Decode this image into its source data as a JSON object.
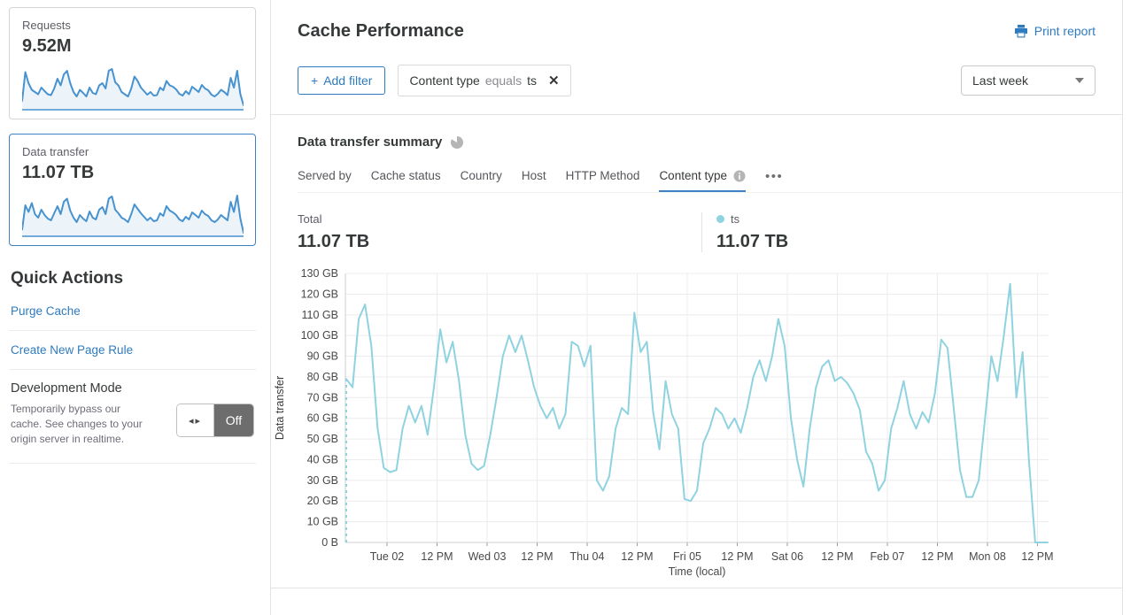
{
  "sidebar": {
    "cards": [
      {
        "label": "Requests",
        "value": "9.52M"
      },
      {
        "label": "Data transfer",
        "value": "11.07 TB"
      }
    ],
    "sparklines": {
      "requests": [
        20,
        85,
        60,
        45,
        40,
        35,
        50,
        42,
        35,
        33,
        48,
        70,
        55,
        80,
        88,
        60,
        40,
        30,
        45,
        38,
        30,
        50,
        38,
        35,
        55,
        60,
        48,
        88,
        92,
        62,
        55,
        40,
        35,
        30,
        48,
        75,
        65,
        50,
        42,
        34,
        40,
        32,
        33,
        50,
        44,
        65,
        55,
        52,
        46,
        36,
        32,
        42,
        35,
        52,
        46,
        40,
        56,
        48,
        44,
        34,
        30,
        36,
        45,
        40,
        33,
        72,
        50,
        88,
        35,
        10
      ],
      "data_transfer": [
        15,
        70,
        55,
        75,
        50,
        42,
        60,
        48,
        40,
        36,
        52,
        68,
        50,
        78,
        85,
        58,
        42,
        32,
        48,
        40,
        34,
        56,
        42,
        38,
        60,
        66,
        50,
        85,
        90,
        60,
        52,
        42,
        38,
        32,
        50,
        72,
        62,
        52,
        44,
        36,
        42,
        34,
        36,
        52,
        46,
        68,
        58,
        54,
        48,
        38,
        34,
        44,
        38,
        54,
        48,
        42,
        58,
        50,
        46,
        36,
        32,
        38,
        48,
        42,
        36,
        78,
        55,
        92,
        40,
        8
      ]
    },
    "quick_actions": {
      "title": "Quick Actions",
      "links": [
        "Purge Cache",
        "Create New Page Rule"
      ],
      "dev_mode": {
        "title": "Development Mode",
        "description": "Temporarily bypass our cache. See changes to your origin server in realtime.",
        "toggle_state": "Off"
      }
    }
  },
  "header": {
    "title": "Cache Performance",
    "print_label": "Print report"
  },
  "filters": {
    "add_filter_plus": "+",
    "add_filter_label": "Add filter",
    "chip": {
      "field": "Content type",
      "operator": "equals",
      "value": "ts"
    },
    "time_range": "Last week"
  },
  "summary": {
    "title": "Data transfer summary",
    "tabs": [
      "Served by",
      "Cache status",
      "Country",
      "Host",
      "HTTP Method",
      "Content type"
    ],
    "stats": {
      "total_label": "Total",
      "total_value": "11.07 TB",
      "series_label": "ts",
      "series_value": "11.07 TB"
    }
  },
  "icons": {
    "close_x": "✕",
    "more_dots": "•••",
    "toggle_arrows": "◂▸",
    "info_i": "i"
  },
  "colors": {
    "link_blue": "#2f7bbf",
    "series_blue": "#8fd2e0",
    "sparkline_blue": "#4792cf",
    "selected_card_border": "#3e82c4",
    "toggle_off_bg": "#6d6d6d"
  },
  "chart_data": {
    "type": "line",
    "title": "Data transfer summary — Content type",
    "xlabel": "Time (local)",
    "ylabel": "Data transfer",
    "unit": "GB",
    "ylim_gb": [
      0,
      130
    ],
    "y_ticks": [
      "130 GB",
      "120 GB",
      "110 GB",
      "100 GB",
      "90 GB",
      "80 GB",
      "70 GB",
      "60 GB",
      "50 GB",
      "40 GB",
      "30 GB",
      "20 GB",
      "10 GB",
      "0 B"
    ],
    "x_ticks": [
      "Tue 02",
      "12 PM",
      "Wed 03",
      "12 PM",
      "Thu 04",
      "12 PM",
      "Fri 05",
      "12 PM",
      "Sat 06",
      "12 PM",
      "Feb 07",
      "12 PM",
      "Mon 08",
      "12 PM"
    ],
    "grid": true,
    "legend_position": "stats-row",
    "start_dashed": true,
    "series": [
      {
        "name": "ts",
        "color": "#8fd2e0",
        "values": [
          79,
          75,
          108,
          115,
          95,
          55,
          36,
          34,
          35,
          55,
          66,
          58,
          66,
          52,
          75,
          103,
          87,
          97,
          78,
          52,
          38,
          35,
          37,
          52,
          70,
          90,
          100,
          92,
          100,
          88,
          75,
          66,
          60,
          65,
          55,
          62,
          97,
          95,
          85,
          95,
          30,
          25,
          32,
          55,
          65,
          62,
          111,
          92,
          97,
          63,
          45,
          78,
          62,
          55,
          21,
          20,
          25,
          48,
          55,
          65,
          62,
          55,
          60,
          53,
          65,
          80,
          88,
          78,
          90,
          108,
          95,
          60,
          40,
          27,
          55,
          75,
          85,
          88,
          78,
          80,
          77,
          72,
          64,
          44,
          38,
          25,
          30,
          55,
          65,
          78,
          62,
          55,
          63,
          58,
          72,
          98,
          94,
          65,
          35,
          22,
          22,
          30,
          60,
          90,
          78,
          100,
          125,
          70,
          92,
          40,
          0,
          0,
          0
        ]
      }
    ]
  }
}
